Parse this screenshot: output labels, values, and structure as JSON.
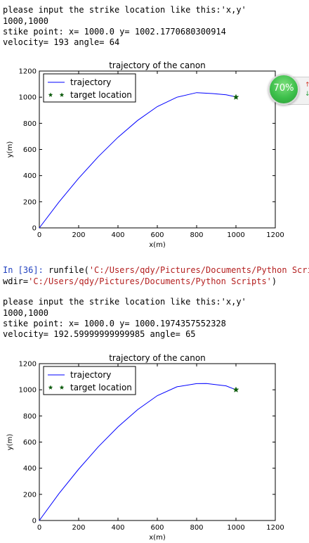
{
  "console": {
    "block1": {
      "prompt_text": "please input the strike location like this:'x,y'",
      "input_echo": "1000,1000",
      "strike_point": "stike point: x= 1000.0 y= 1002.1770680300914",
      "velocity_line": "velocity= 193 angle= 64"
    },
    "runfile": {
      "in_prompt": "In [36]:",
      "call_prefix": " runfile(",
      "file_path": "'C:/Users/qdy/Pictures/Documents/Python Script",
      "wdir_prefix": "wdir=",
      "wdir_path": "'C:/Users/qdy/Pictures/Documents/Python Scripts'",
      "close_paren": ")"
    },
    "block2": {
      "prompt_text": "please input the strike location like this:'x,y'",
      "input_echo": "1000,1000",
      "strike_point": "stike point: x= 1000.0 y= 1000.1974357552328",
      "velocity_line": "velocity= 192.59999999999985 angle= 65"
    }
  },
  "widget": {
    "label": "70%",
    "up_arrow": "↑",
    "down_arrow": "↓"
  },
  "chart_data": [
    {
      "type": "line",
      "title": "trajectory of the canon",
      "xlabel": "x(m)",
      "ylabel": "y(m)",
      "xlim": [
        0,
        1200
      ],
      "ylim": [
        0,
        1200
      ],
      "xticks": [
        "0",
        "200",
        "400",
        "600",
        "800",
        "1000",
        "1200"
      ],
      "yticks": [
        "0",
        "200",
        "400",
        "600",
        "800",
        "1000",
        "1200"
      ],
      "legend_placement": "upper-left",
      "series": [
        {
          "name": "trajectory",
          "color": "#0000ff",
          "x": [
            0,
            100,
            200,
            300,
            400,
            500,
            600,
            700,
            800,
            880,
            950,
            1000
          ],
          "y": [
            0,
            198,
            380,
            545,
            693,
            822,
            928,
            1000,
            1035,
            1028,
            1018,
            1002
          ]
        },
        {
          "name": "target location",
          "color": "#0a5a0a",
          "marker": "star",
          "x": [
            1000
          ],
          "y": [
            1000
          ]
        }
      ]
    },
    {
      "type": "line",
      "title": "trajectory of the canon",
      "xlabel": "x(m)",
      "ylabel": "y(m)",
      "xlim": [
        0,
        1200
      ],
      "ylim": [
        0,
        1200
      ],
      "xticks": [
        "0",
        "200",
        "400",
        "600",
        "800",
        "1000",
        "1200"
      ],
      "yticks": [
        "0",
        "200",
        "400",
        "600",
        "800",
        "1000",
        "1200"
      ],
      "legend_placement": "upper-left",
      "series": [
        {
          "name": "trajectory",
          "color": "#0000ff",
          "x": [
            0,
            100,
            200,
            300,
            400,
            500,
            600,
            700,
            800,
            850,
            950,
            1000
          ],
          "y": [
            0,
            206,
            393,
            564,
            716,
            848,
            955,
            1023,
            1047,
            1048,
            1030,
            1000
          ]
        },
        {
          "name": "target location",
          "color": "#0a5a0a",
          "marker": "star",
          "x": [
            1000
          ],
          "y": [
            1000
          ]
        }
      ]
    }
  ]
}
